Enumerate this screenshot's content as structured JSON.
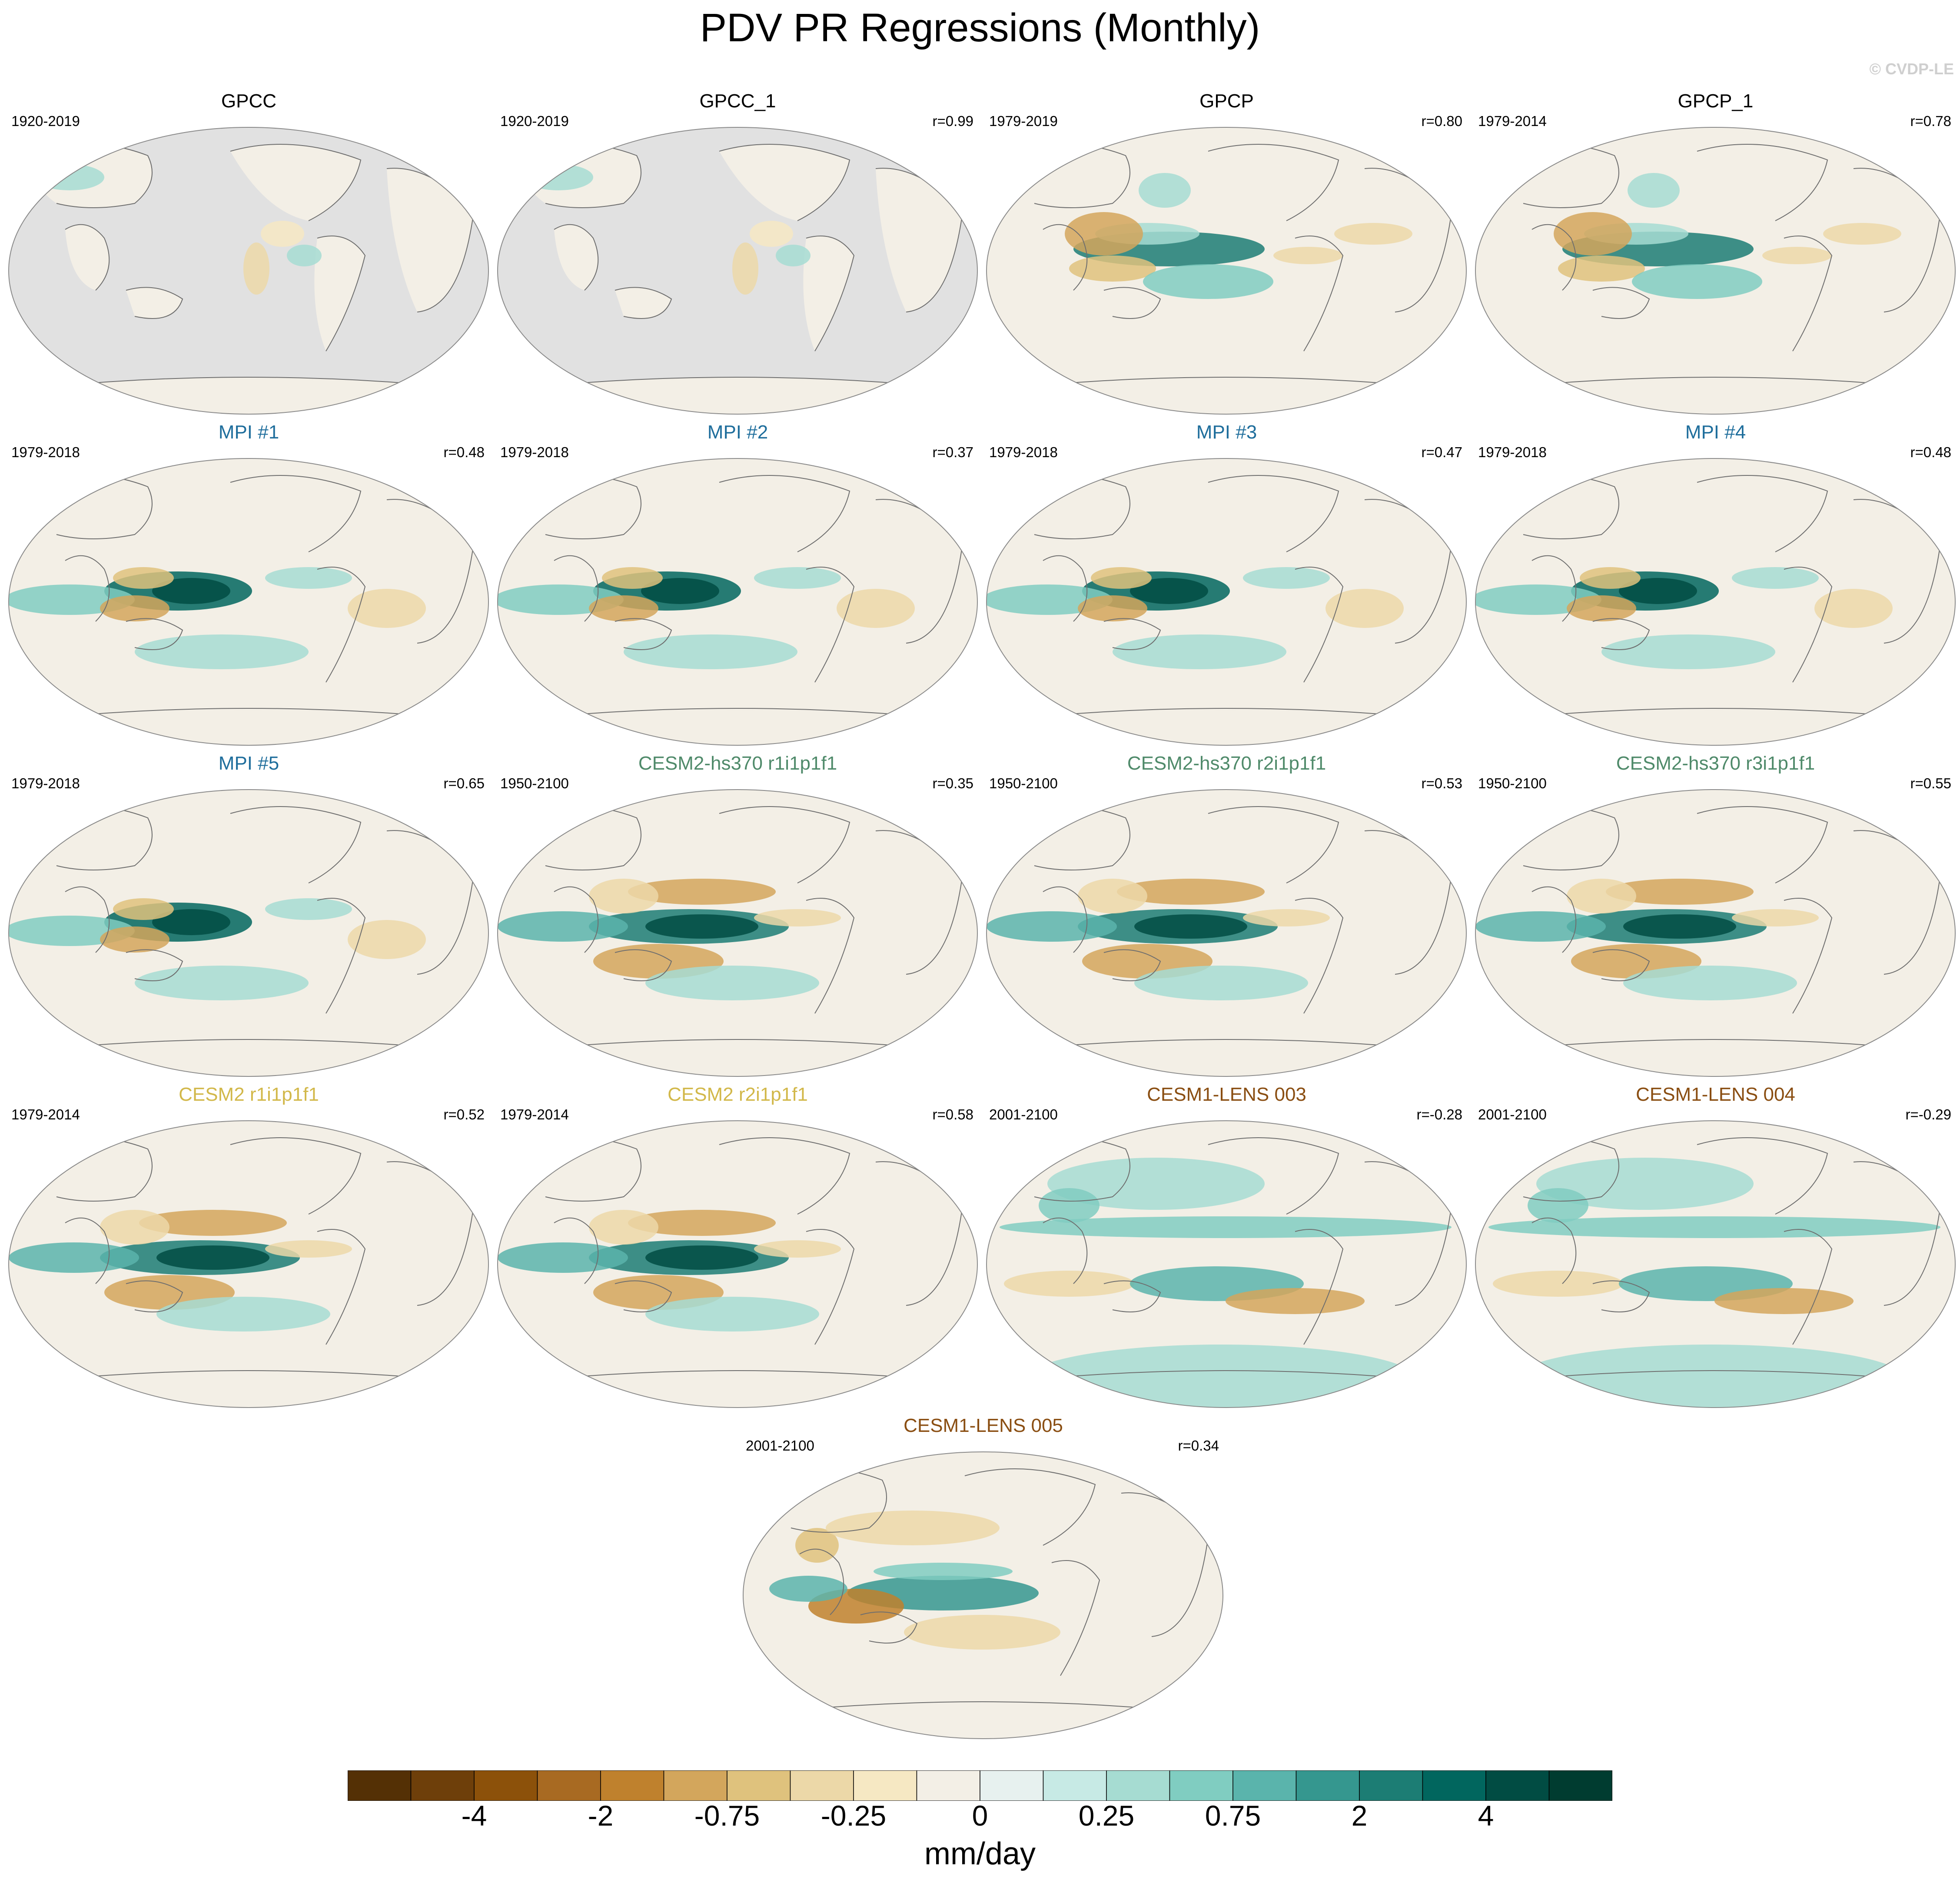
{
  "title": "PDV PR Regressions (Monthly)",
  "watermark": "© CVDP-LE",
  "panels": [
    {
      "title": "GPCC",
      "years": "1920-2019",
      "r": "",
      "title_color": "#000000",
      "style": "land"
    },
    {
      "title": "GPCC_1",
      "years": "1920-2019",
      "r": "r=0.99",
      "title_color": "#000000",
      "style": "land"
    },
    {
      "title": "GPCP",
      "years": "1979-2019",
      "r": "r=0.80",
      "title_color": "#000000",
      "style": "obs"
    },
    {
      "title": "GPCP_1",
      "years": "1979-2014",
      "r": "r=0.78",
      "title_color": "#000000",
      "style": "obs"
    },
    {
      "title": "MPI #1",
      "years": "1979-2018",
      "r": "r=0.48",
      "title_color": "#1f6e9c",
      "style": "mpi"
    },
    {
      "title": "MPI #2",
      "years": "1979-2018",
      "r": "r=0.37",
      "title_color": "#1f6e9c",
      "style": "mpi"
    },
    {
      "title": "MPI #3",
      "years": "1979-2018",
      "r": "r=0.47",
      "title_color": "#1f6e9c",
      "style": "mpi"
    },
    {
      "title": "MPI #4",
      "years": "1979-2018",
      "r": "r=0.48",
      "title_color": "#1f6e9c",
      "style": "mpi"
    },
    {
      "title": "MPI #5",
      "years": "1979-2018",
      "r": "r=0.65",
      "title_color": "#1f6e9c",
      "style": "mpi"
    },
    {
      "title": "CESM2-hs370 r1i1p1f1",
      "years": "1950-2100",
      "r": "r=0.35",
      "title_color": "#4f8a6a",
      "style": "cesm2"
    },
    {
      "title": "CESM2-hs370 r2i1p1f1",
      "years": "1950-2100",
      "r": "r=0.53",
      "title_color": "#4f8a6a",
      "style": "cesm2"
    },
    {
      "title": "CESM2-hs370 r3i1p1f1",
      "years": "1950-2100",
      "r": "r=0.55",
      "title_color": "#4f8a6a",
      "style": "cesm2"
    },
    {
      "title": "CESM2 r1i1p1f1",
      "years": "1979-2014",
      "r": "r=0.52",
      "title_color": "#d2b84a",
      "style": "cesm2"
    },
    {
      "title": "CESM2 r2i1p1f1",
      "years": "1979-2014",
      "r": "r=0.58",
      "title_color": "#d2b84a",
      "style": "cesm2"
    },
    {
      "title": "CESM1-LENS 003",
      "years": "2001-2100",
      "r": "r=-0.28",
      "title_color": "#8a4e12",
      "style": "lens_neg"
    },
    {
      "title": "CESM1-LENS 004",
      "years": "2001-2100",
      "r": "r=-0.29",
      "title_color": "#8a4e12",
      "style": "lens_neg"
    },
    {
      "title": "CESM1-LENS 005",
      "years": "2001-2100",
      "r": "r=0.34",
      "title_color": "#8a4e12",
      "style": "lens_pos"
    }
  ],
  "colorbar": {
    "colors": [
      "#543005",
      "#6e3f0a",
      "#8c510a",
      "#a86a22",
      "#bf812d",
      "#d3a65c",
      "#dfc27d",
      "#ecd8a8",
      "#f6e8c3",
      "#f3efe6",
      "#e7f1ef",
      "#c7eae5",
      "#a6dcd2",
      "#80cdc1",
      "#5ab4ac",
      "#35978f",
      "#1c7d74",
      "#01665e",
      "#014c43",
      "#003c30"
    ],
    "labels": [
      "-4",
      "-2",
      "-0.75",
      "-0.25",
      "0",
      "0.25",
      "0.75",
      "2",
      "4"
    ],
    "units": "mm/day"
  }
}
